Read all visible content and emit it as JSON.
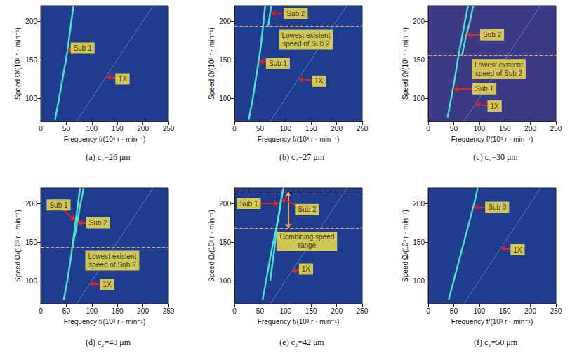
{
  "chart_data": [
    {
      "type": "line",
      "title": "(a) c₂=26 μm",
      "xlabel": "Frequency f/(10³ r · min⁻¹)",
      "ylabel": "Speed Ω/(10³ r · min⁻¹)",
      "xlim": [
        0,
        250
      ],
      "xticks": [
        0,
        50,
        100,
        150,
        200,
        250
      ],
      "ylim": [
        70,
        220
      ],
      "yticks": [
        100,
        150,
        200
      ],
      "grid": false,
      "series": [
        {
          "name": "1X",
          "color": "#5d8fd6",
          "line_style": "solid",
          "x": [
            70,
            220
          ],
          "values": [
            70,
            220
          ]
        },
        {
          "name": "Sub 1",
          "color": "#4fe6cf",
          "line_style": "solid",
          "x": [
            28,
            36,
            44,
            52,
            58,
            64
          ],
          "values": [
            72,
            100,
            130,
            160,
            190,
            220
          ]
        }
      ],
      "hlines": [],
      "annotations": [
        {
          "text": "Sub 1",
          "x": 82,
          "y": 165,
          "point": [
            53,
            162
          ]
        },
        {
          "text": "1X",
          "x": 160,
          "y": 125,
          "point": [
            128,
            128
          ]
        }
      ]
    },
    {
      "type": "line",
      "title": "(b) c₂=27 μm",
      "xlabel": "Frequency f/(10³ r · min⁻¹)",
      "ylabel": "Speed Ω/(10³ r · min⁻¹)",
      "xlim": [
        0,
        250
      ],
      "xticks": [
        0,
        50,
        100,
        150,
        200,
        250
      ],
      "ylim": [
        70,
        220
      ],
      "yticks": [
        100,
        150,
        200
      ],
      "grid": false,
      "series": [
        {
          "name": "1X",
          "color": "#5d8fd6",
          "line_style": "solid",
          "x": [
            70,
            220
          ],
          "values": [
            70,
            220
          ]
        },
        {
          "name": "Sub 1",
          "color": "#4fe6cf",
          "line_style": "solid",
          "x": [
            28,
            36,
            43,
            48,
            53,
            57,
            60
          ],
          "values": [
            72,
            100,
            130,
            150,
            175,
            200,
            220
          ]
        },
        {
          "name": "Sub 2",
          "color": "#4fe6cf",
          "line_style": "solid",
          "x": [
            66,
            72
          ],
          "values": [
            193,
            220
          ]
        }
      ],
      "hlines": [
        193
      ],
      "annotations": [
        {
          "text": "Sub 2",
          "x": 120,
          "y": 210,
          "point": [
            71,
            210
          ]
        },
        {
          "text": "Lowest existent speed of Sub 2",
          "x": 140,
          "y": 176,
          "point": null
        },
        {
          "text": "Sub 1",
          "x": 85,
          "y": 145,
          "point": [
            48,
            148
          ]
        },
        {
          "text": "1X",
          "x": 165,
          "y": 122,
          "point": [
            125,
            125
          ]
        }
      ]
    },
    {
      "type": "line",
      "title": "(c) c₂=30 μm",
      "xlabel": "Frequency f/(10³ r · min⁻¹)",
      "ylabel": "Speed Ω/(10³ r · min⁻¹)",
      "xlim": [
        0,
        250
      ],
      "xticks": [
        0,
        50,
        100,
        150,
        200,
        250
      ],
      "ylim": [
        70,
        220
      ],
      "yticks": [
        100,
        150,
        200
      ],
      "grid": false,
      "series": [
        {
          "name": "1X",
          "color": "#6a86d0",
          "line_style": "solid",
          "x": [
            70,
            220
          ],
          "values": [
            70,
            220
          ]
        },
        {
          "name": "Sub 1",
          "color": "#4fe6cf",
          "line_style": "solid",
          "x": [
            38,
            45,
            52,
            58,
            65,
            72,
            78
          ],
          "values": [
            75,
            100,
            125,
            150,
            175,
            200,
            220
          ]
        },
        {
          "name": "Sub 2",
          "color": "#4fe6cf",
          "line_style": "solid",
          "x": [
            66,
            74,
            82,
            88
          ],
          "values": [
            155,
            180,
            200,
            220
          ]
        }
      ],
      "hlines": [
        155
      ],
      "annotations": [
        {
          "text": "Sub 2",
          "x": 125,
          "y": 182,
          "point": [
            75,
            182
          ]
        },
        {
          "text": "Lowest existent speed of Sub 2",
          "x": 138,
          "y": 138,
          "point": null
        },
        {
          "text": "Sub 1",
          "x": 110,
          "y": 112,
          "point": [
            50,
            112
          ]
        },
        {
          "text": "1X",
          "x": 130,
          "y": 90,
          "point": [
            92,
            92
          ]
        }
      ]
    },
    {
      "type": "line",
      "title": "(d) c₂=40 μm",
      "xlabel": "Frequency f/(10³ r · min⁻¹)",
      "ylabel": "Speed Ω/(10³ r · min⁻¹)",
      "xlim": [
        0,
        250
      ],
      "xticks": [
        0,
        50,
        100,
        150,
        200,
        250
      ],
      "ylim": [
        70,
        220
      ],
      "yticks": [
        100,
        150,
        200
      ],
      "grid": false,
      "series": [
        {
          "name": "1X",
          "color": "#5d8fd6",
          "line_style": "solid",
          "x": [
            70,
            220
          ],
          "values": [
            70,
            220
          ]
        },
        {
          "name": "Sub 1",
          "color": "#4fe6cf",
          "line_style": "solid",
          "x": [
            45,
            52,
            58,
            63,
            68,
            73,
            77
          ],
          "values": [
            75,
            100,
            125,
            150,
            175,
            200,
            220
          ]
        },
        {
          "name": "Sub 2",
          "color": "#4fe6cf",
          "line_style": "solid",
          "x": [
            62,
            70,
            78,
            84
          ],
          "values": [
            143,
            170,
            200,
            220
          ]
        }
      ],
      "hlines": [
        143
      ],
      "annotations": [
        {
          "text": "Sub 1",
          "x": 35,
          "y": 198,
          "point": [
            67,
            178
          ]
        },
        {
          "text": "Sub 2",
          "x": 112,
          "y": 175,
          "point": [
            72,
            175
          ]
        },
        {
          "text": "Lowest existent speed of Sub 2",
          "x": 140,
          "y": 126,
          "point": null
        },
        {
          "text": "1X",
          "x": 130,
          "y": 95,
          "point": [
            96,
            96
          ]
        }
      ]
    },
    {
      "type": "line",
      "title": "(e) c₂=42 μm",
      "xlabel": "Frequency f/(10³ r · min⁻¹)",
      "ylabel": "Speed Ω/(10³ r · min⁻¹)",
      "xlim": [
        0,
        250
      ],
      "xticks": [
        0,
        50,
        100,
        150,
        200,
        250
      ],
      "ylim": [
        70,
        220
      ],
      "yticks": [
        100,
        150,
        200
      ],
      "grid": false,
      "series": [
        {
          "name": "1X",
          "color": "#5d8fd6",
          "line_style": "solid",
          "x": [
            70,
            220
          ],
          "values": [
            70,
            220
          ]
        },
        {
          "name": "Sub 1",
          "color": "#4fe6cf",
          "line_style": "solid",
          "x": [
            55,
            62,
            70,
            76,
            82,
            88,
            94
          ],
          "values": [
            75,
            100,
            130,
            150,
            168,
            190,
            215
          ]
        },
        {
          "name": "Sub 2",
          "color": "#4fe6cf",
          "line_style": "solid",
          "x": [
            70,
            76,
            80,
            82,
            88,
            94,
            96
          ],
          "values": [
            100,
            130,
            150,
            168,
            190,
            215,
            220
          ]
        }
      ],
      "hlines": [
        168,
        215
      ],
      "range_arrow": {
        "x": 105,
        "from": 168,
        "to": 215
      },
      "annotations": [
        {
          "text": "Sub 1",
          "x": 28,
          "y": 200,
          "point": [
            86,
            200
          ]
        },
        {
          "text": "Sub 2",
          "x": 142,
          "y": 192,
          "point": [
            92,
            206
          ]
        },
        {
          "text": "Combining speed range",
          "x": 142,
          "y": 151,
          "point": null
        },
        {
          "text": "1X",
          "x": 140,
          "y": 115,
          "point": [
            112,
            112
          ]
        }
      ]
    },
    {
      "type": "line",
      "title": "(f) c₂=50 μm",
      "xlabel": "Frequency f/(10³ r · min⁻¹)",
      "ylabel": "Speed Ω/(10³ r · min⁻¹)",
      "xlim": [
        0,
        250
      ],
      "xticks": [
        0,
        50,
        100,
        150,
        200,
        250
      ],
      "ylim": [
        70,
        220
      ],
      "yticks": [
        100,
        150,
        200
      ],
      "grid": false,
      "series": [
        {
          "name": "1X",
          "color": "#5d8fd6",
          "line_style": "solid",
          "x": [
            70,
            220
          ],
          "values": [
            70,
            220
          ]
        },
        {
          "name": "Sub 0",
          "color": "#4fe6cf",
          "line_style": "solid",
          "x": [
            40,
            50,
            60,
            70,
            80,
            90,
            97
          ],
          "values": [
            75,
            100,
            125,
            150,
            175,
            200,
            220
          ]
        }
      ],
      "hlines": [],
      "annotations": [
        {
          "text": "Sub 0",
          "x": 135,
          "y": 195,
          "point": [
            89,
            195
          ]
        },
        {
          "text": "1X",
          "x": 175,
          "y": 140,
          "point": [
            142,
            142
          ]
        }
      ]
    }
  ]
}
